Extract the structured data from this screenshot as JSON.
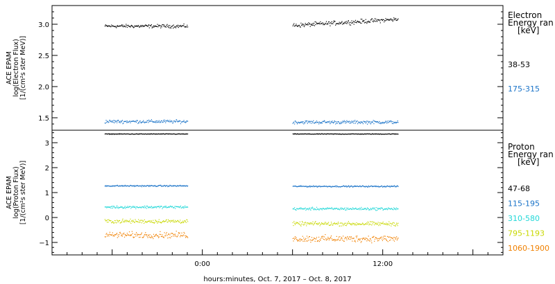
{
  "chart_data": [
    {
      "type": "scatter",
      "panel": "electron",
      "ylabel": [
        "ACE EPAM",
        "log(Electron Flux)",
        "[1/(cm²s ster MeV)]"
      ],
      "ylim": [
        1.3,
        3.3
      ],
      "yticks": [
        {
          "v": 1.5,
          "label": "1.5"
        },
        {
          "v": 2.0,
          "label": "2.0"
        },
        {
          "v": 2.5,
          "label": "2.5"
        },
        {
          "v": 3.0,
          "label": "3.0"
        }
      ],
      "legend": {
        "title_lines": [
          "Electron",
          "Energy ran",
          "[keV]"
        ],
        "placement": "right"
      },
      "series": [
        {
          "name": "38-53",
          "color": "#000000",
          "segments": [
            {
              "x": [
                -6.5,
                -1.0
              ],
              "mean": 2.97,
              "noise": 0.04
            },
            {
              "x": [
                6.0,
                13.0
              ],
              "mean": 2.98,
              "trend": 0.1,
              "noise": 0.05
            }
          ]
        },
        {
          "name": "175-315",
          "color": "#1a73c8",
          "segments": [
            {
              "x": [
                -6.5,
                -1.0
              ],
              "mean": 1.44,
              "noise": 0.04
            },
            {
              "x": [
                6.0,
                13.0
              ],
              "mean": 1.43,
              "noise": 0.04
            }
          ]
        }
      ]
    },
    {
      "type": "scatter",
      "panel": "proton",
      "ylabel": [
        "ACE EPAM",
        "log(Proton Flux)",
        "[1/(cm²s ster MeV)]"
      ],
      "ylim": [
        -1.5,
        3.5
      ],
      "yticks": [
        {
          "v": -1,
          "label": "−1"
        },
        {
          "v": 0,
          "label": "0"
        },
        {
          "v": 1,
          "label": "1"
        },
        {
          "v": 2,
          "label": "2"
        },
        {
          "v": 3,
          "label": "3"
        }
      ],
      "legend": {
        "title_lines": [
          "Proton",
          "Energy ran",
          "[keV]"
        ],
        "placement": "right"
      },
      "series": [
        {
          "name": "47-68",
          "color": "#000000",
          "segments": [
            {
              "x": [
                -6.5,
                -1.0
              ],
              "mean": 3.35,
              "noise": 0.02
            },
            {
              "x": [
                6.0,
                13.0
              ],
              "mean": 3.35,
              "noise": 0.02
            }
          ]
        },
        {
          "name": "115-195",
          "color": "#1a73c8",
          "segments": [
            {
              "x": [
                -6.5,
                -1.0
              ],
              "mean": 1.27,
              "noise": 0.04
            },
            {
              "x": [
                6.0,
                13.0
              ],
              "mean": 1.25,
              "noise": 0.04
            }
          ]
        },
        {
          "name": "310-580",
          "color": "#22d8d8",
          "segments": [
            {
              "x": [
                -6.5,
                -1.0
              ],
              "mean": 0.42,
              "noise": 0.08
            },
            {
              "x": [
                6.0,
                13.0
              ],
              "mean": 0.35,
              "noise": 0.08
            }
          ]
        },
        {
          "name": "795-1193",
          "color": "#c8d800",
          "segments": [
            {
              "x": [
                -6.5,
                -1.0
              ],
              "mean": -0.15,
              "noise": 0.12
            },
            {
              "x": [
                6.0,
                13.0
              ],
              "mean": -0.25,
              "noise": 0.12
            }
          ]
        },
        {
          "name": "1060-1900",
          "color": "#f08000",
          "segments": [
            {
              "x": [
                -6.5,
                -1.0
              ],
              "mean": -0.7,
              "noise": 0.18
            },
            {
              "x": [
                6.0,
                13.0
              ],
              "mean": -0.85,
              "noise": 0.2
            }
          ]
        }
      ]
    }
  ],
  "x_axis": {
    "xlim": [
      -10,
      20
    ],
    "labeled_ticks": [
      {
        "v": 0,
        "label": "0:00"
      },
      {
        "v": 12,
        "label": "12:00"
      }
    ],
    "title": "hours:minutes, Oct.  7, 2017 – Oct.  8, 2017"
  }
}
